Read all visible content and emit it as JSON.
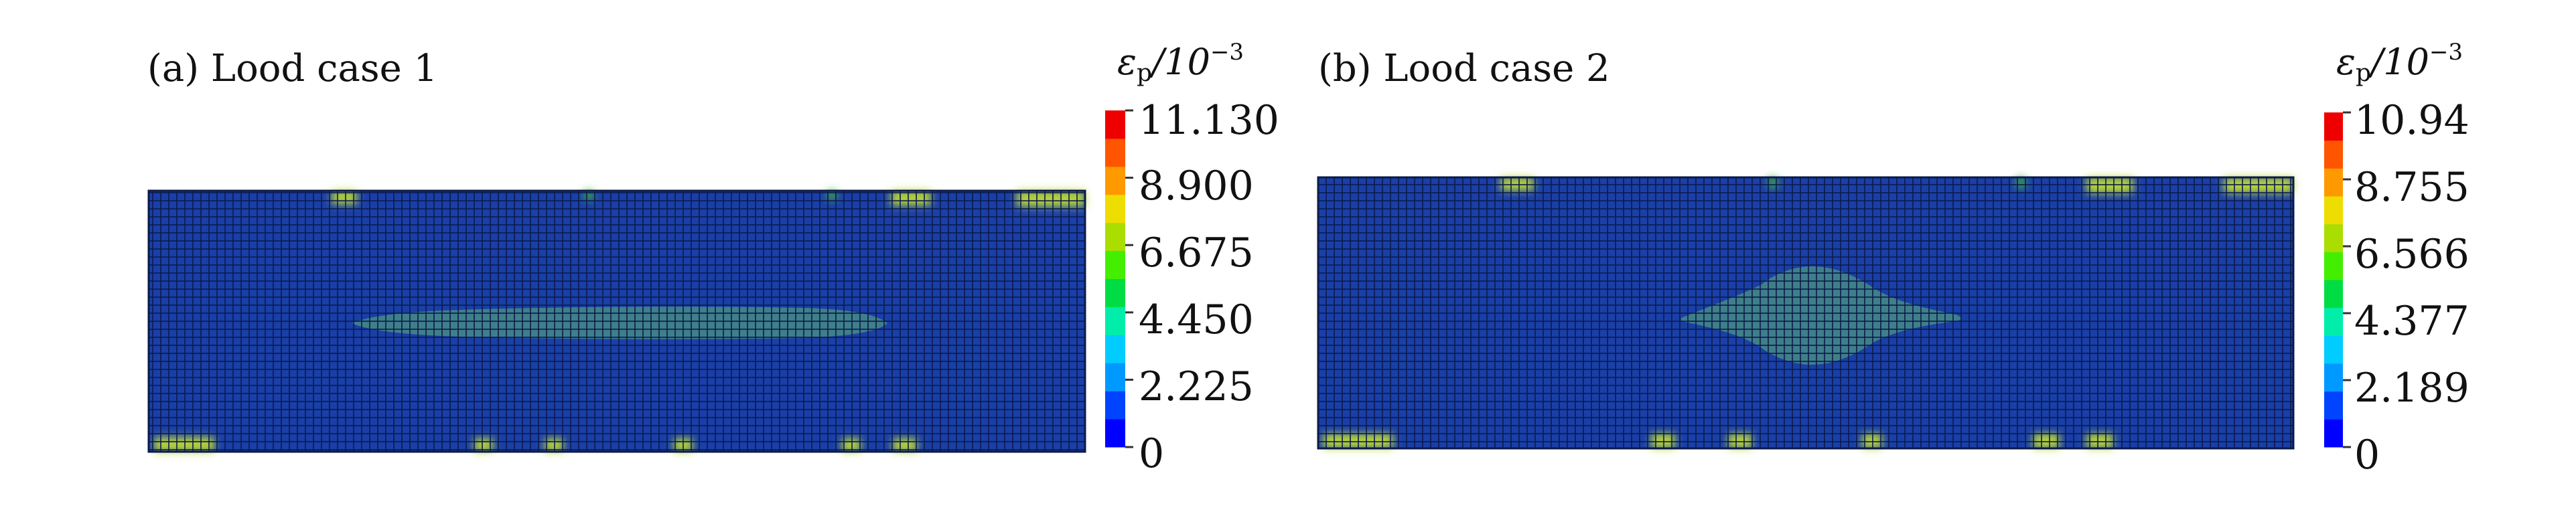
{
  "panels": [
    {
      "title": "(a) Lood case 1",
      "colorbar_title": {
        "symbol": "ε",
        "sub": "p",
        "unit": "/10",
        "exp": "−3"
      },
      "colorbar_ticks": [
        "11.130",
        "8.900",
        "6.675",
        "4.450",
        "2.225",
        "0"
      ]
    },
    {
      "title": "(b) Lood case 2",
      "colorbar_title": {
        "symbol": "ε",
        "sub": "p",
        "unit": "/10",
        "exp": "−3"
      },
      "colorbar_ticks": [
        "10.94",
        "8.755",
        "6.566",
        "4.377",
        "2.189",
        "0"
      ]
    }
  ],
  "colors": {
    "contour_levels": [
      "#0000ff",
      "#0044ff",
      "#0099ff",
      "#00ccff",
      "#00eeaa",
      "#00dd44",
      "#44ee00",
      "#aadd00",
      "#eedd00",
      "#ff9900",
      "#ff5500",
      "#ee0000"
    ],
    "mesh_background": "#1a3fa8",
    "mesh_line": "#0b1a4a",
    "plastic_zone": "#3f7f8a",
    "hotspot_green": "#3fae3a",
    "hotspot_yellow": "#b8d436"
  }
}
